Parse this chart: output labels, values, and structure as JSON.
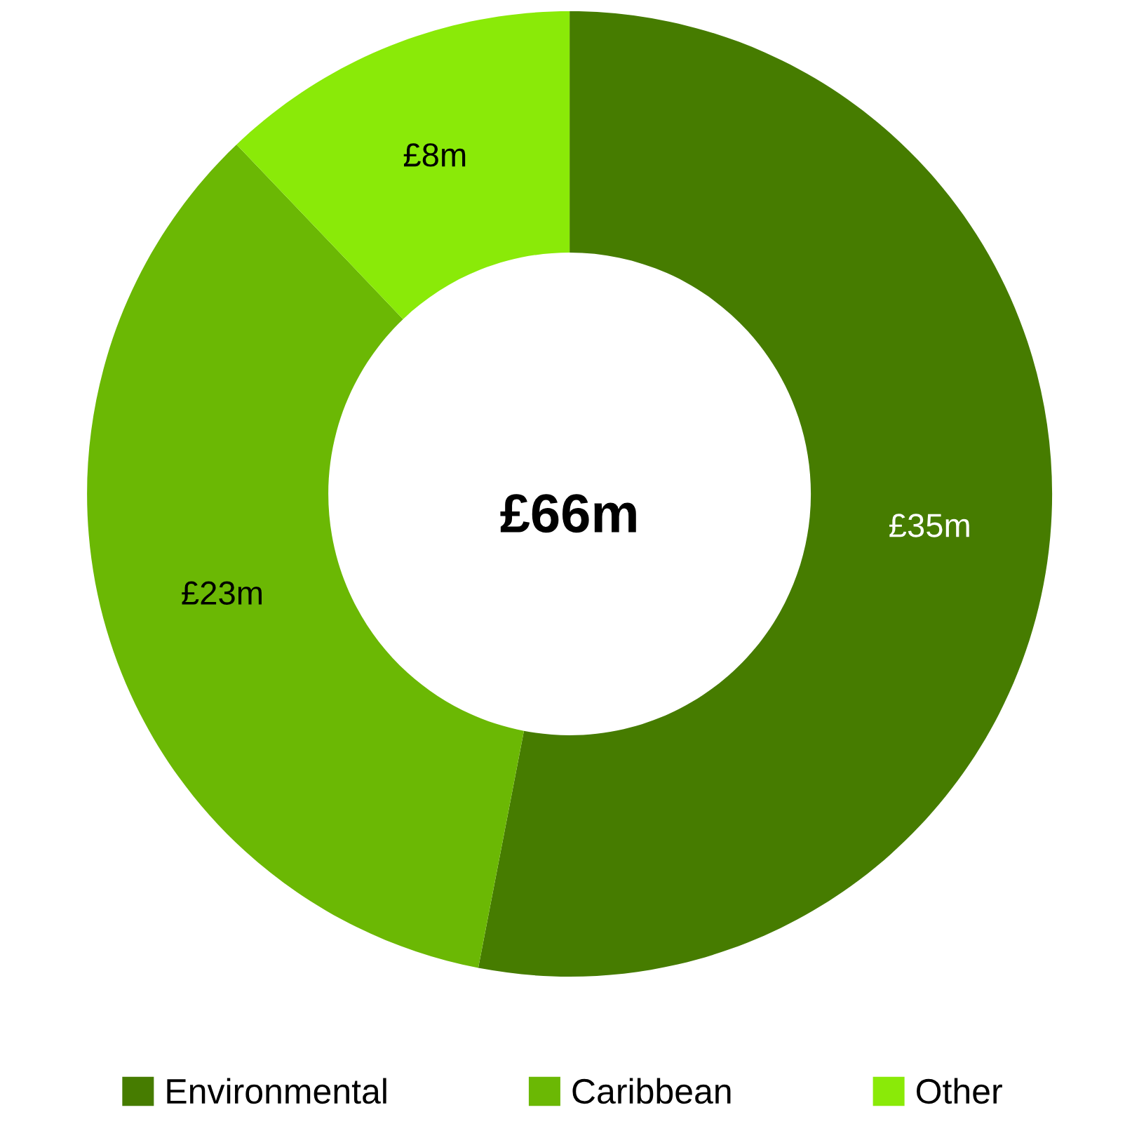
{
  "chart_data": {
    "type": "donut",
    "categories": [
      "Environmental",
      "Caribbean",
      "Other"
    ],
    "values": [
      35,
      23,
      8
    ],
    "value_labels": [
      "£35m",
      "£23m",
      "£8m"
    ],
    "colors": [
      "#467c00",
      "#6bb804",
      "#8aea08"
    ],
    "annotations": [
      "£66m"
    ],
    "legend": "bottom"
  }
}
